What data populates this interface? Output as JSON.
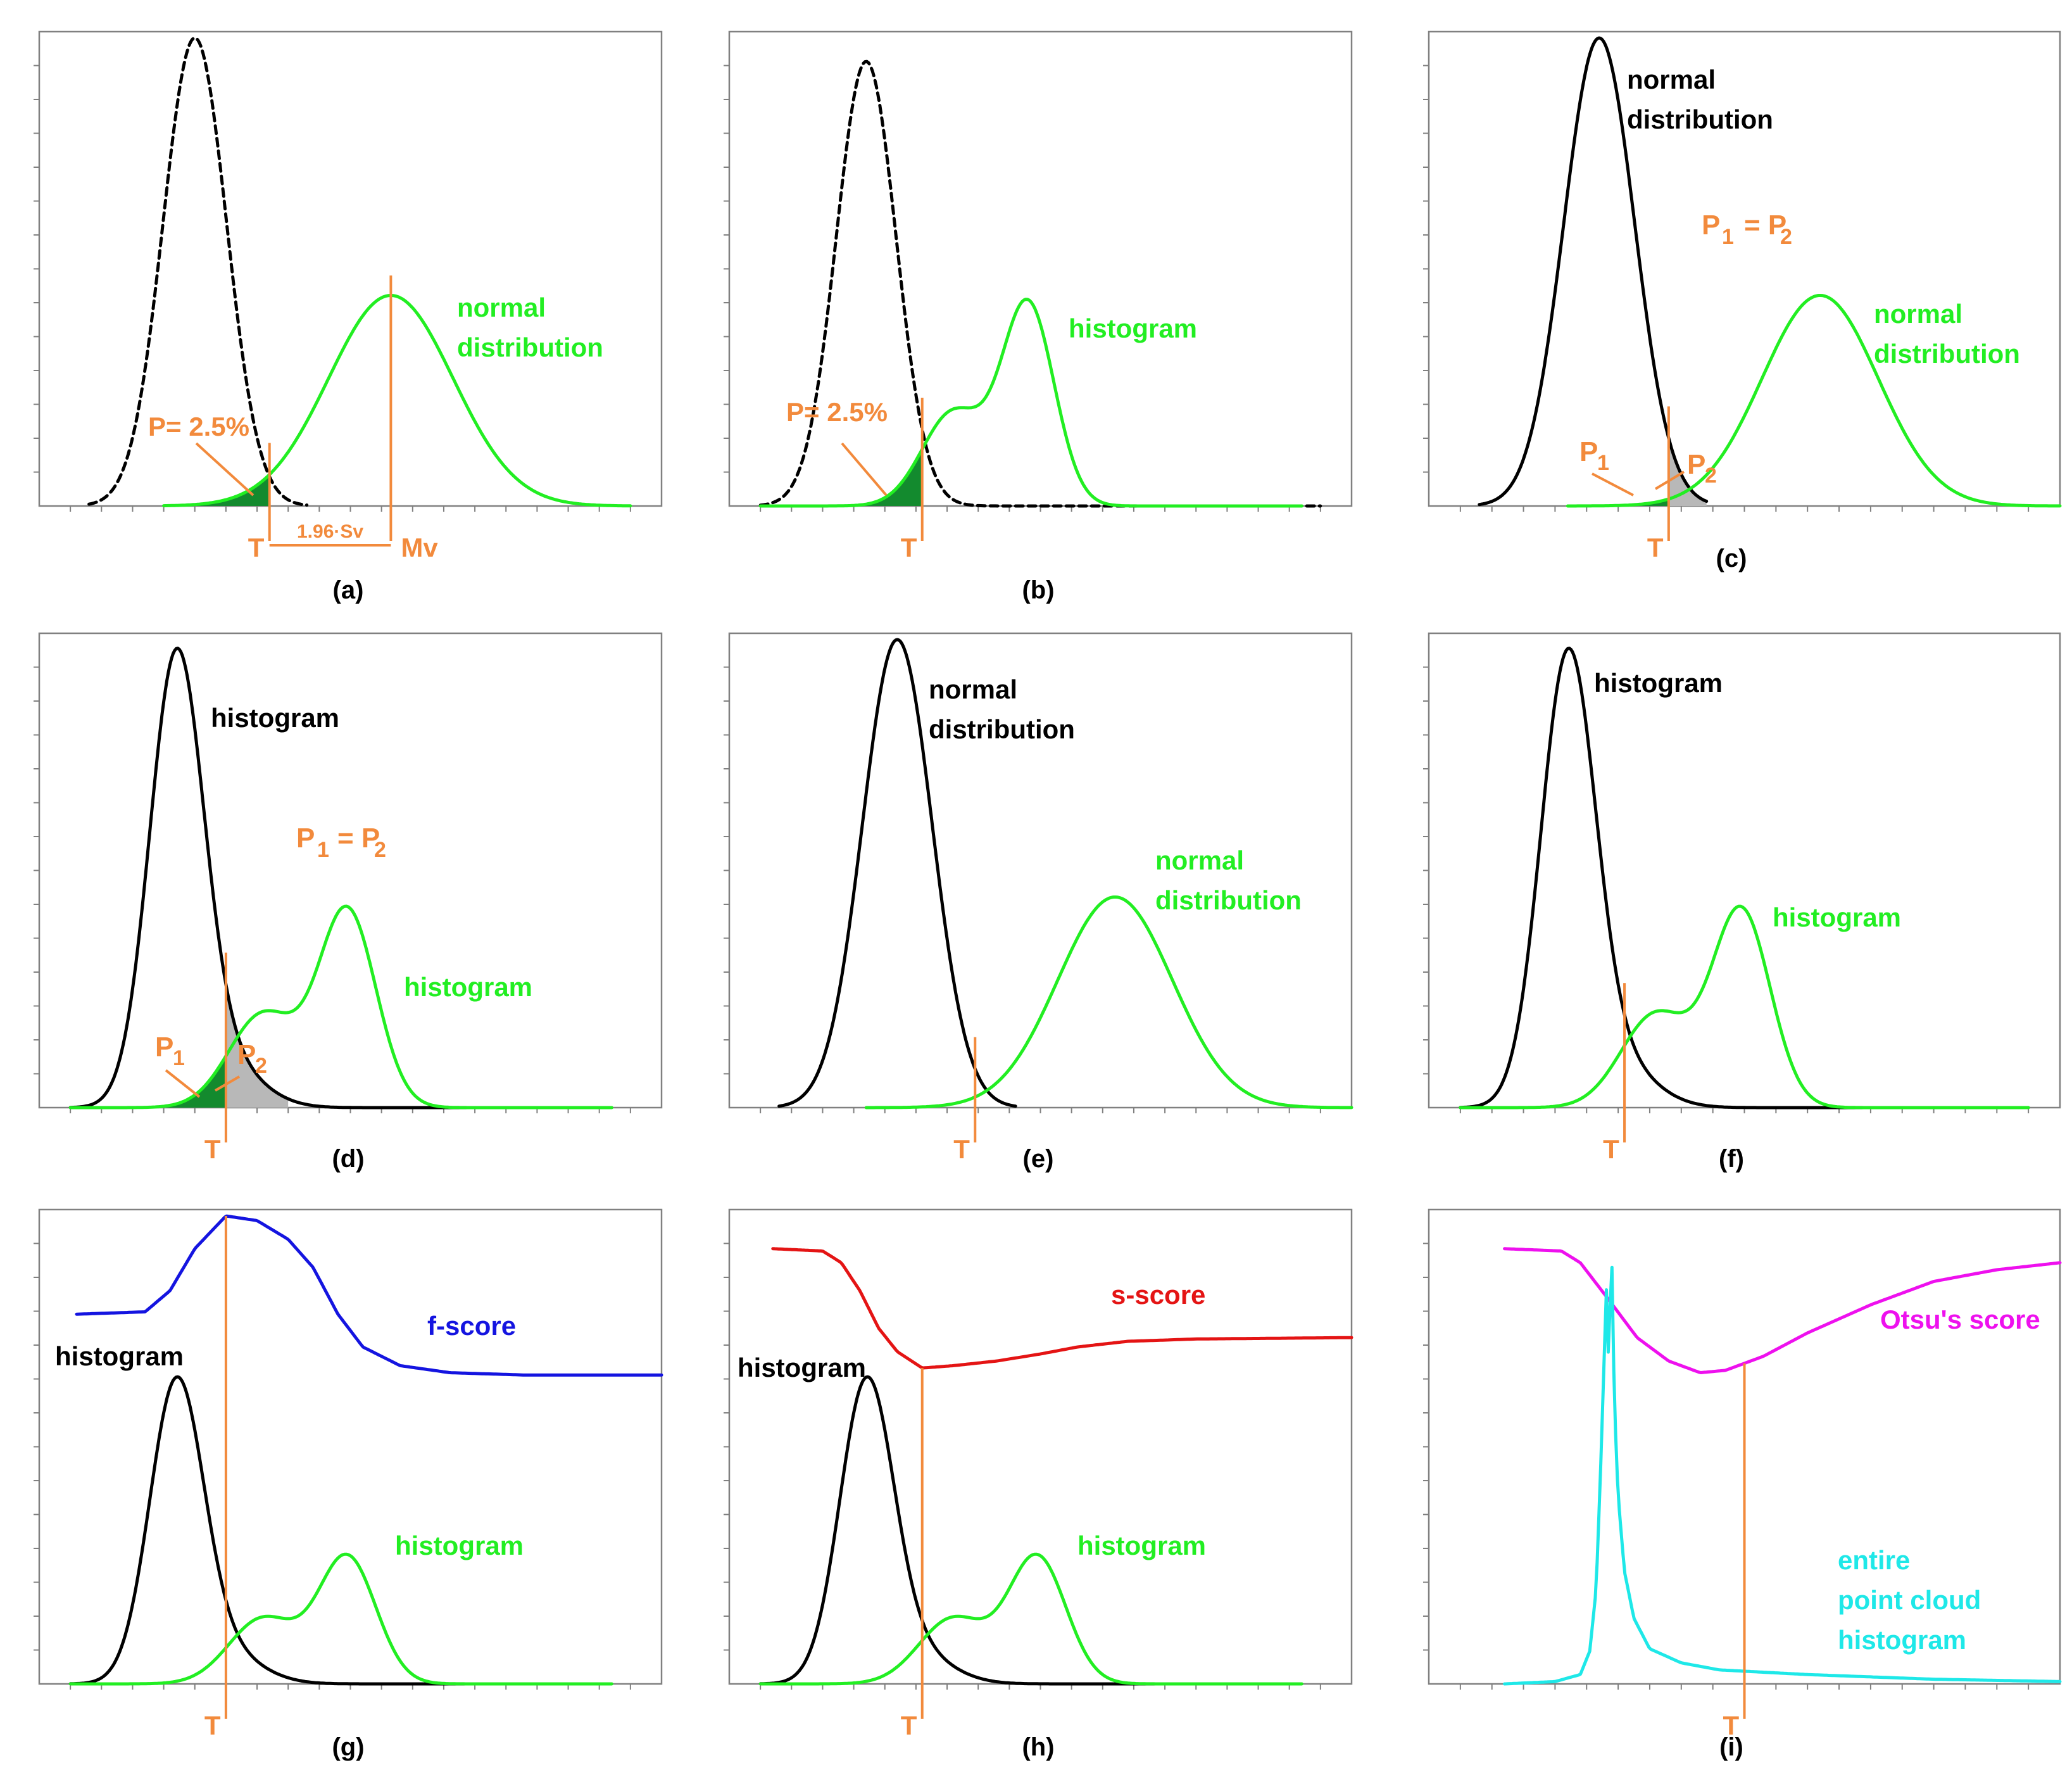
{
  "figure": {
    "colors": {
      "green": "#22ee22",
      "black": "#000000",
      "orange": "#f28a3c",
      "blue": "#1414e0",
      "red": "#e41414",
      "magenta": "#ee10ee",
      "cyan": "#1ee8e8",
      "shade_green": "#138a2e",
      "shade_gray": "#b8b8b8"
    }
  },
  "chart_data": [
    {
      "panel": "a",
      "type": "line",
      "caption": "(a)",
      "x_range": [
        0,
        100
      ],
      "y_range": [
        0,
        1
      ],
      "series": [
        {
          "name": "black dashed",
          "shape": "gauss",
          "mu": 25,
          "sigma": 5.1,
          "amp": 1.0,
          "color": "black",
          "dashed": true,
          "from": 8,
          "to": 43
        },
        {
          "name": "normal distribution",
          "shape": "gauss",
          "mu": 56.5,
          "sigma": 10,
          "amp": 0.45,
          "color": "green",
          "from": 20,
          "to": 95
        }
      ],
      "threshold": {
        "x": 37,
        "label": "T"
      },
      "mean_marker": {
        "x": 56.5,
        "label": "Mv"
      },
      "interval_label": "1.96·Sv",
      "shade": {
        "curve": 1,
        "from": 20,
        "to": 37,
        "color": "shade_green"
      },
      "labels": [
        {
          "text": "normal",
          "color": "green"
        },
        {
          "text": "distribution",
          "color": "green"
        },
        {
          "text": "P= 2.5%",
          "color": "orange"
        }
      ]
    },
    {
      "panel": "b",
      "type": "line",
      "caption": "(b)",
      "x_range": [
        0,
        100
      ],
      "y_range": [
        0,
        1
      ],
      "series": [
        {
          "name": "black dashed",
          "shape": "gauss",
          "mu": 22,
          "sigma": 4.8,
          "amp": 0.95,
          "color": "black",
          "dashed": true,
          "from": 5,
          "to": 95
        },
        {
          "name": "histogram",
          "shape": "hist",
          "components": [
            {
              "mu": 36,
              "sigma": 5,
              "amp": 0.2
            },
            {
              "mu": 48,
              "sigma": 4.2,
              "amp": 0.43
            }
          ],
          "color": "green",
          "from": 5,
          "to": 92
        }
      ],
      "threshold": {
        "x": 31,
        "label": "T"
      },
      "shade": {
        "curve": 1,
        "from": 20,
        "to": 31,
        "color": "shade_green"
      },
      "labels": [
        {
          "text": "histogram",
          "color": "green"
        },
        {
          "text": "P= 2.5%",
          "color": "orange"
        }
      ]
    },
    {
      "panel": "c",
      "type": "line",
      "caption": "(c)",
      "x_range": [
        0,
        100
      ],
      "y_range": [
        0,
        1
      ],
      "series": [
        {
          "name": "normal distribution",
          "shape": "gauss",
          "mu": 27,
          "sigma": 5.6,
          "amp": 1.0,
          "color": "black",
          "from": 8,
          "to": 44
        },
        {
          "name": "normal distribution",
          "shape": "gauss",
          "mu": 62,
          "sigma": 9.2,
          "amp": 0.45,
          "color": "green",
          "from": 22,
          "to": 100
        }
      ],
      "threshold": {
        "x": 38,
        "label": "T"
      },
      "shade": {
        "from": 28,
        "to": 44,
        "split": 38,
        "left_curve": 1,
        "right_curve": 0
      },
      "labels": [
        {
          "text": "normal",
          "color": "black"
        },
        {
          "text": "distribution",
          "color": "black"
        },
        {
          "text": "P",
          "color": "orange"
        },
        {
          "text": "1",
          "color": "orange"
        },
        {
          "text": "= P",
          "color": "orange"
        },
        {
          "text": "2",
          "color": "orange"
        },
        {
          "text": "normal",
          "color": "green"
        },
        {
          "text": "distribution",
          "color": "green"
        },
        {
          "text": "P",
          "color": "orange"
        },
        {
          "text": "1",
          "color": "orange"
        },
        {
          "text": "P",
          "color": "orange"
        },
        {
          "text": "2",
          "color": "orange"
        }
      ]
    },
    {
      "panel": "d",
      "type": "line",
      "caption": "(d)",
      "x_range": [
        0,
        100
      ],
      "y_range": [
        0,
        1
      ],
      "series": [
        {
          "name": "histogram",
          "shape": "hist",
          "components": [
            {
              "mu": 22,
              "sigma": 4.3,
              "amp": 0.93
            },
            {
              "mu": 29,
              "sigma": 6,
              "amp": 0.1
            }
          ],
          "color": "black",
          "from": 5,
          "to": 80
        },
        {
          "name": "histogram",
          "shape": "hist",
          "components": [
            {
              "mu": 36,
              "sigma": 5.5,
              "amp": 0.2
            },
            {
              "mu": 49.5,
              "sigma": 4.6,
              "amp": 0.42
            }
          ],
          "color": "green",
          "from": 5,
          "to": 92
        }
      ],
      "threshold": {
        "x": 30,
        "label": "T"
      },
      "shade": {
        "from": 20,
        "to": 40,
        "split": 30,
        "left_curve": 1,
        "right_curve": 0
      },
      "labels": [
        {
          "text": "histogram",
          "color": "black"
        },
        {
          "text": "P",
          "color": "orange"
        },
        {
          "text": "1",
          "color": "orange"
        },
        {
          "text": "= P",
          "color": "orange"
        },
        {
          "text": "2",
          "color": "orange"
        },
        {
          "text": "histogram",
          "color": "green"
        },
        {
          "text": "P",
          "color": "orange"
        },
        {
          "text": "1",
          "color": "orange"
        },
        {
          "text": "P",
          "color": "orange"
        },
        {
          "text": "2",
          "color": "orange"
        }
      ]
    },
    {
      "panel": "e",
      "type": "line",
      "caption": "(e)",
      "x_range": [
        0,
        100
      ],
      "y_range": [
        0,
        1
      ],
      "series": [
        {
          "name": "normal distribution",
          "shape": "gauss",
          "mu": 27,
          "sigma": 5.6,
          "amp": 1.0,
          "color": "black",
          "from": 8,
          "to": 46
        },
        {
          "name": "normal distribution",
          "shape": "gauss",
          "mu": 62,
          "sigma": 9.2,
          "amp": 0.45,
          "color": "green",
          "from": 22,
          "to": 100
        }
      ],
      "threshold": {
        "x": 39.5,
        "label": "T"
      },
      "labels": [
        {
          "text": "normal",
          "color": "black"
        },
        {
          "text": "distribution",
          "color": "black"
        },
        {
          "text": "normal",
          "color": "green"
        },
        {
          "text": "distribution",
          "color": "green"
        }
      ]
    },
    {
      "panel": "f",
      "type": "line",
      "caption": "(f)",
      "x_range": [
        0,
        100
      ],
      "y_range": [
        0,
        1
      ],
      "series": [
        {
          "name": "histogram",
          "shape": "hist",
          "components": [
            {
              "mu": 22,
              "sigma": 4.3,
              "amp": 0.93
            },
            {
              "mu": 29,
              "sigma": 6,
              "amp": 0.1
            }
          ],
          "color": "black",
          "from": 5,
          "to": 80
        },
        {
          "name": "histogram",
          "shape": "hist",
          "components": [
            {
              "mu": 36,
              "sigma": 5.5,
              "amp": 0.2
            },
            {
              "mu": 49.5,
              "sigma": 4.6,
              "amp": 0.42
            }
          ],
          "color": "green",
          "from": 5,
          "to": 95
        }
      ],
      "threshold": {
        "x": 31,
        "label": "T"
      },
      "labels": [
        {
          "text": "histogram",
          "color": "black"
        },
        {
          "text": "histogram",
          "color": "green"
        }
      ]
    },
    {
      "panel": "g",
      "type": "line",
      "caption": "(g)",
      "x_range": [
        0,
        100
      ],
      "y_range": [
        0,
        1
      ],
      "series": [
        {
          "name": "histogram",
          "shape": "hist",
          "components": [
            {
              "mu": 22,
              "sigma": 4.3,
              "amp": 0.62
            },
            {
              "mu": 29,
              "sigma": 6,
              "amp": 0.07
            }
          ],
          "color": "black",
          "from": 5,
          "to": 80
        },
        {
          "name": "histogram",
          "shape": "hist",
          "components": [
            {
              "mu": 36,
              "sigma": 5.5,
              "amp": 0.14
            },
            {
              "mu": 49.5,
              "sigma": 4.6,
              "amp": 0.27
            }
          ],
          "color": "green",
          "from": 5,
          "to": 92
        },
        {
          "name": "f-score",
          "shape": "points",
          "color": "blue",
          "points": [
            [
              6,
              0.79
            ],
            [
              17,
              0.795
            ],
            [
              21,
              0.84
            ],
            [
              25,
              0.93
            ],
            [
              30,
              1.0
            ],
            [
              35,
              0.99
            ],
            [
              40,
              0.95
            ],
            [
              44,
              0.89
            ],
            [
              48,
              0.79
            ],
            [
              52,
              0.72
            ],
            [
              58,
              0.68
            ],
            [
              66,
              0.665
            ],
            [
              78,
              0.66
            ],
            [
              100,
              0.66
            ]
          ]
        }
      ],
      "threshold": {
        "x": 30,
        "label": "T"
      },
      "labels": [
        {
          "text": "f-score",
          "color": "blue"
        },
        {
          "text": "histogram",
          "color": "black"
        },
        {
          "text": "histogram",
          "color": "green"
        }
      ]
    },
    {
      "panel": "h",
      "type": "line",
      "caption": "(h)",
      "x_range": [
        0,
        100
      ],
      "y_range": [
        0,
        1
      ],
      "series": [
        {
          "name": "histogram",
          "shape": "hist",
          "components": [
            {
              "mu": 22,
              "sigma": 4.3,
              "amp": 0.62
            },
            {
              "mu": 29,
              "sigma": 6,
              "amp": 0.07
            }
          ],
          "color": "black",
          "from": 5,
          "to": 80
        },
        {
          "name": "histogram",
          "shape": "hist",
          "components": [
            {
              "mu": 36,
              "sigma": 5.5,
              "amp": 0.14
            },
            {
              "mu": 49.5,
              "sigma": 4.6,
              "amp": 0.27
            }
          ],
          "color": "green",
          "from": 5,
          "to": 92
        },
        {
          "name": "s-score",
          "shape": "points",
          "color": "red",
          "points": [
            [
              7,
              0.93
            ],
            [
              15,
              0.925
            ],
            [
              18,
              0.9
            ],
            [
              21,
              0.84
            ],
            [
              24,
              0.76
            ],
            [
              27,
              0.71
            ],
            [
              31,
              0.675
            ],
            [
              36,
              0.68
            ],
            [
              43,
              0.69
            ],
            [
              50,
              0.705
            ],
            [
              56,
              0.72
            ],
            [
              64,
              0.732
            ],
            [
              75,
              0.737
            ],
            [
              100,
              0.74
            ]
          ]
        }
      ],
      "threshold": {
        "x": 31,
        "label": "T"
      },
      "labels": [
        {
          "text": "s-score",
          "color": "red"
        },
        {
          "text": "histogram",
          "color": "black"
        },
        {
          "text": "histogram",
          "color": "green"
        }
      ]
    },
    {
      "panel": "i",
      "type": "line",
      "caption": "(i)",
      "x_range": [
        0,
        100
      ],
      "y_range": [
        0,
        1
      ],
      "series": [
        {
          "name": "Otsu's score",
          "shape": "points",
          "color": "magenta",
          "points": [
            [
              12,
              0.93
            ],
            [
              21,
              0.925
            ],
            [
              24,
              0.9
            ],
            [
              28,
              0.83
            ],
            [
              33,
              0.74
            ],
            [
              38,
              0.69
            ],
            [
              43,
              0.665
            ],
            [
              47,
              0.67
            ],
            [
              53,
              0.7
            ],
            [
              60,
              0.75
            ],
            [
              70,
              0.81
            ],
            [
              80,
              0.86
            ],
            [
              90,
              0.885
            ],
            [
              100,
              0.9
            ]
          ]
        },
        {
          "name": "entire point cloud histogram",
          "shape": "points",
          "color": "cyan",
          "points": [
            [
              12,
              0
            ],
            [
              20,
              0.005
            ],
            [
              24,
              0.02
            ],
            [
              25.5,
              0.07
            ],
            [
              26.5,
              0.2
            ],
            [
              27.2,
              0.45
            ],
            [
              27.8,
              0.7
            ],
            [
              28.1,
              0.86
            ],
            [
              28.4,
              0.7
            ],
            [
              28.7,
              0.8
            ],
            [
              29,
              0.9
            ],
            [
              29.4,
              0.6
            ],
            [
              30,
              0.4
            ],
            [
              31,
              0.24
            ],
            [
              32.5,
              0.14
            ],
            [
              35,
              0.075
            ],
            [
              40,
              0.045
            ],
            [
              46,
              0.03
            ],
            [
              60,
              0.02
            ],
            [
              80,
              0.01
            ],
            [
              100,
              0.005
            ]
          ]
        }
      ],
      "threshold": {
        "x": 50,
        "label": "T"
      },
      "labels": [
        {
          "text": "Otsu's score",
          "color": "magenta"
        },
        {
          "text": "entire",
          "color": "cyan"
        },
        {
          "text": "point cloud",
          "color": "cyan"
        },
        {
          "text": "histogram",
          "color": "cyan"
        }
      ]
    }
  ]
}
